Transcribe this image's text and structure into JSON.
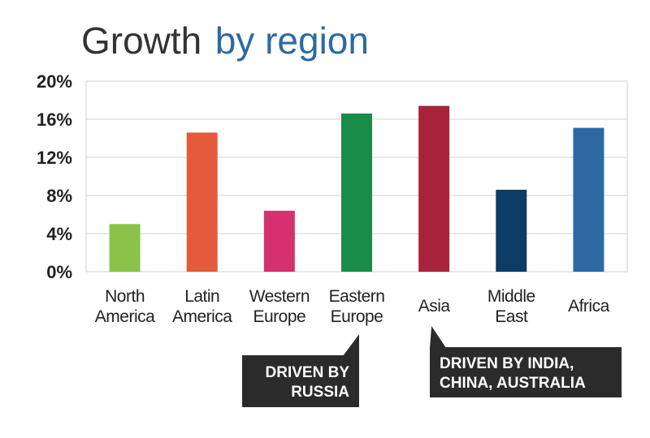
{
  "chart_data": {
    "type": "bar",
    "title_part1": "Growth",
    "title_part2": "by region",
    "categories": [
      [
        "North",
        "America"
      ],
      [
        "Latin",
        "America"
      ],
      [
        "Western",
        "Europe"
      ],
      [
        "Eastern",
        "Europe"
      ],
      [
        "Asia"
      ],
      [
        "Middle",
        "East"
      ],
      [
        "Africa"
      ]
    ],
    "values": [
      5.0,
      14.6,
      6.4,
      16.6,
      17.4,
      8.6,
      15.1
    ],
    "colors": [
      "#8bc34a",
      "#e55a3a",
      "#d6306f",
      "#1a8c4a",
      "#a8233a",
      "#0d3c66",
      "#2d6aa3"
    ],
    "ylim": [
      0,
      20
    ],
    "yticks": [
      0,
      4,
      8,
      12,
      16,
      20
    ],
    "ytick_labels": [
      "0%",
      "4%",
      "8%",
      "12%",
      "16%",
      "20%"
    ],
    "grid": true,
    "annotations": [
      {
        "target_index": 3,
        "lines": [
          "DRIVEN BY",
          "RUSSIA"
        ]
      },
      {
        "target_index": 4,
        "lines": [
          "DRIVEN BY INDIA,",
          "CHINA, AUSTRALIA"
        ]
      }
    ]
  },
  "colors": {
    "title_accent": "#2d6aa3",
    "callout_bg": "#2b2b2b",
    "grid": "#d0d0d0",
    "axis": "#cfcfcf"
  }
}
